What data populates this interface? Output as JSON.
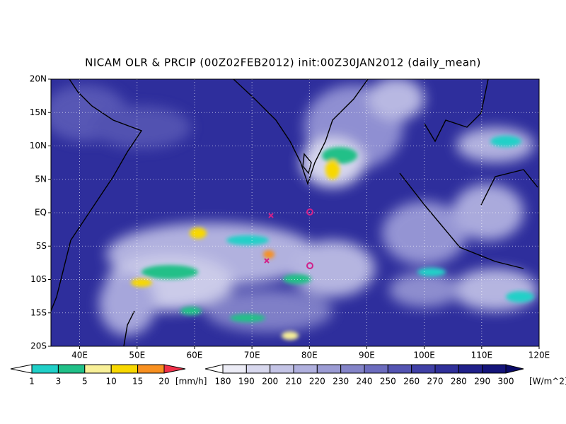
{
  "map": {
    "title": "NICAM OLR & PRCIP (00Z02FEB2012) init:00Z30JAN2012 (daily_mean)",
    "lonlim": [
      35,
      120
    ],
    "latlim": [
      -20,
      20
    ],
    "lon_ticks": [
      {
        "value": 40,
        "label": "40E"
      },
      {
        "value": 50,
        "label": "50E"
      },
      {
        "value": 60,
        "label": "60E"
      },
      {
        "value": 70,
        "label": "70E"
      },
      {
        "value": 80,
        "label": "80E"
      },
      {
        "value": 90,
        "label": "90E"
      },
      {
        "value": 100,
        "label": "100E"
      },
      {
        "value": 110,
        "label": "110E"
      },
      {
        "value": 120,
        "label": "120E"
      }
    ],
    "lat_ticks": [
      {
        "value": 20,
        "label": "20N"
      },
      {
        "value": 15,
        "label": "15N"
      },
      {
        "value": 10,
        "label": "10N"
      },
      {
        "value": 5,
        "label": "5N"
      },
      {
        "value": 0,
        "label": "EQ"
      },
      {
        "value": -5,
        "label": "5S"
      },
      {
        "value": -10,
        "label": "10S"
      },
      {
        "value": -15,
        "label": "15S"
      },
      {
        "value": -20,
        "label": "20S"
      }
    ]
  },
  "colorbars": [
    {
      "levels": [
        1,
        3,
        5,
        10,
        15,
        20
      ],
      "unit": "[mm/h]",
      "colors": [
        "#ffffff",
        "#20d0c8",
        "#20c088",
        "#f8f098",
        "#f8d800",
        "#f89020",
        "#f03048"
      ]
    },
    {
      "levels": [
        180,
        190,
        200,
        210,
        220,
        230,
        240,
        250,
        260,
        270,
        280,
        290,
        300
      ],
      "unit": "[W/m^2]",
      "colors": [
        "#ffffff",
        "#ececf6",
        "#d8d8ee",
        "#c4c4e6",
        "#b0b0de",
        "#9c9cd4",
        "#8484c8",
        "#6c6cbe",
        "#5454b2",
        "#4040a6",
        "#30309a",
        "#20208a",
        "#14147a",
        "#0a0a68"
      ]
    }
  ]
}
